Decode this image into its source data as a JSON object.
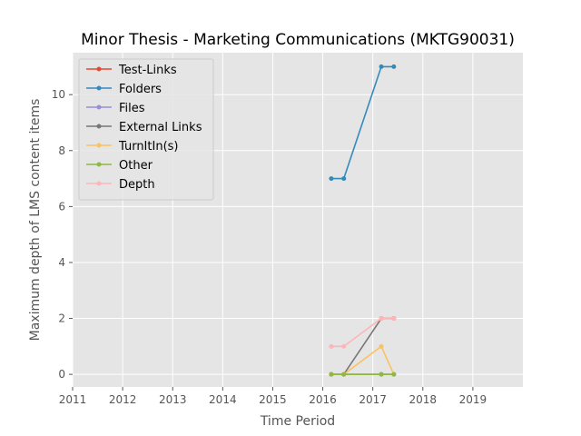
{
  "chart_data": {
    "type": "line",
    "title": "Minor Thesis - Marketing Communications (MKTG90031)",
    "xlabel": "Time Period",
    "ylabel": "Maximum depth of LMS content items",
    "xlim": [
      2011.0,
      2020.0
    ],
    "ylim": [
      -0.45,
      11.5
    ],
    "xticks": [
      2011,
      2012,
      2013,
      2014,
      2015,
      2016,
      2017,
      2018,
      2019
    ],
    "xtick_labels": [
      "2011",
      "2012",
      "2013",
      "2014",
      "2015",
      "2016",
      "2017",
      "2018",
      "2019"
    ],
    "yticks": [
      0,
      2,
      4,
      6,
      8,
      10
    ],
    "ytick_labels": [
      "0",
      "2",
      "4",
      "6",
      "8",
      "10"
    ],
    "grid": true,
    "legend_position": "upper-left",
    "x": [
      2016.17,
      2016.42,
      2017.17,
      2017.42
    ],
    "series": [
      {
        "name": "Test-Links",
        "color": "#E24A33",
        "values": [
          0,
          0,
          0,
          0
        ]
      },
      {
        "name": "Folders",
        "color": "#348ABD",
        "values": [
          7,
          7,
          11,
          11
        ]
      },
      {
        "name": "Files",
        "color": "#988ED5",
        "values": [
          0,
          0,
          0,
          0
        ]
      },
      {
        "name": "External Links",
        "color": "#777777",
        "values": [
          0,
          0,
          2,
          2
        ]
      },
      {
        "name": "TurnItIn(s)",
        "color": "#FBC15E",
        "values": [
          0,
          0,
          1,
          0
        ]
      },
      {
        "name": "Other",
        "color": "#8EBA42",
        "values": [
          0,
          0,
          0,
          0
        ]
      },
      {
        "name": "Depth",
        "color": "#FFB5B8",
        "values": [
          1,
          1,
          2,
          2
        ]
      }
    ]
  }
}
